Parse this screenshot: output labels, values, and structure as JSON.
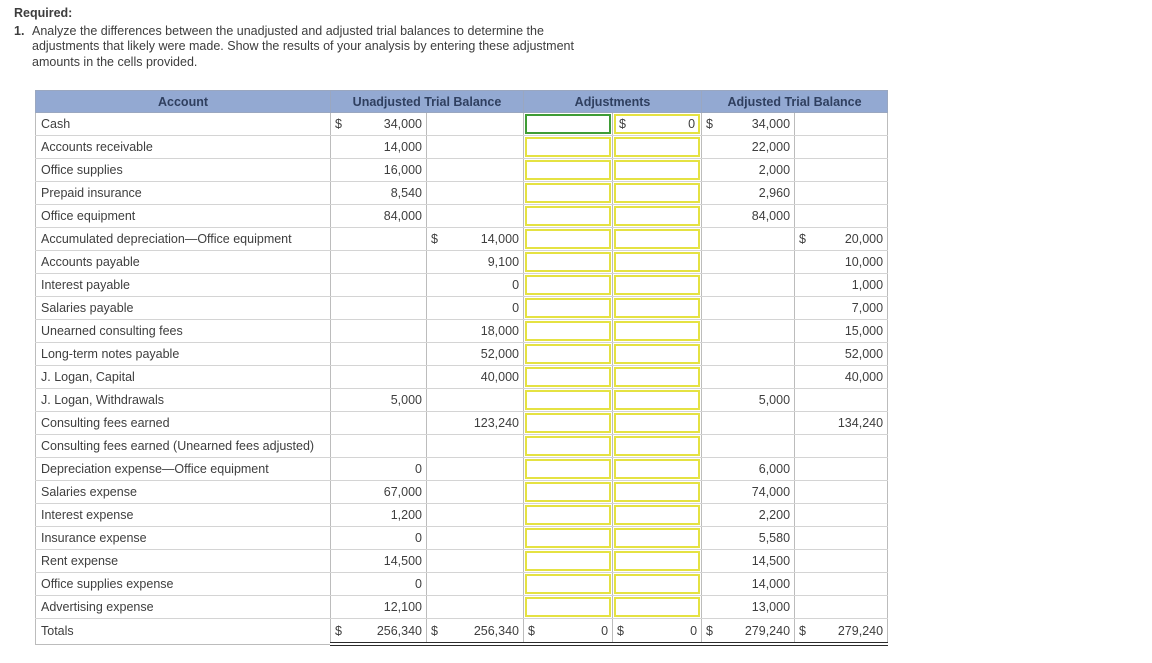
{
  "instructions": {
    "required_label": "Required:",
    "item_number": "1.",
    "item_text": "Analyze the differences between the unadjusted and adjusted trial balances to determine the adjustments that likely were made. Show the results of your analysis by entering these adjustment amounts in the cells provided."
  },
  "colors": {
    "header_bg": "#93a9d2",
    "header_text": "#2f3f5f",
    "input_cell_border": "#e5e242",
    "active_cell_border": "#3f9c35"
  },
  "table": {
    "headers": {
      "account": "Account",
      "unadjusted": "Unadjusted Trial Balance",
      "adjustments": "Adjustments",
      "adjusted": "Adjusted Trial Balance"
    },
    "rows": [
      {
        "account": "Cash",
        "ud_sign": "$",
        "ud": "34,000",
        "adj_debit": {
          "state": "active"
        },
        "adj_credit": {
          "state": "input",
          "sign": "$",
          "value": "0"
        },
        "ad_sign": "$",
        "ad": "34,000"
      },
      {
        "account": "Accounts receivable",
        "ud": "14,000",
        "ad": "22,000"
      },
      {
        "account": "Office supplies",
        "ud": "16,000",
        "ad": "2,000"
      },
      {
        "account": "Prepaid insurance",
        "ud": "8,540",
        "ad": "2,960"
      },
      {
        "account": "Office equipment",
        "ud": "84,000",
        "ad": "84,000"
      },
      {
        "account": "Accumulated depreciation—Office equipment",
        "uc_sign": "$",
        "uc": "14,000",
        "ac_sign": "$",
        "ac": "20,000"
      },
      {
        "account": "Accounts payable",
        "uc": "9,100",
        "ac": "10,000"
      },
      {
        "account": "Interest payable",
        "uc": "0",
        "ac": "1,000"
      },
      {
        "account": "Salaries payable",
        "uc": "0",
        "ac": "7,000"
      },
      {
        "account": "Unearned consulting fees",
        "uc": "18,000",
        "ac": "15,000"
      },
      {
        "account": "Long-term notes payable",
        "uc": "52,000",
        "ac": "52,000"
      },
      {
        "account": "J. Logan, Capital",
        "uc": "40,000",
        "ac": "40,000"
      },
      {
        "account": "J. Logan, Withdrawals",
        "ud": "5,000",
        "ad": "5,000"
      },
      {
        "account": "Consulting fees earned",
        "uc": "123,240",
        "ac": "134,240"
      },
      {
        "account": "Consulting fees earned (Unearned fees adjusted)"
      },
      {
        "account": "Depreciation expense—Office equipment",
        "ud": "0",
        "ad": "6,000"
      },
      {
        "account": "Salaries expense",
        "ud": "67,000",
        "ad": "74,000"
      },
      {
        "account": "Interest expense",
        "ud": "1,200",
        "ad": "2,200"
      },
      {
        "account": "Insurance expense",
        "ud": "0",
        "ad": "5,580"
      },
      {
        "account": "Rent expense",
        "ud": "14,500",
        "ad": "14,500"
      },
      {
        "account": "Office supplies expense",
        "ud": "0",
        "ad": "14,000"
      },
      {
        "account": "Advertising expense",
        "ud": "12,100",
        "ad": "13,000"
      }
    ],
    "totals": {
      "label": "Totals",
      "ud_sign": "$",
      "ud": "256,340",
      "uc_sign": "$",
      "uc": "256,340",
      "adj_d_sign": "$",
      "adj_d": "0",
      "adj_c_sign": "$",
      "adj_c": "0",
      "ad_sign": "$",
      "ad": "279,240",
      "ac_sign": "$",
      "ac": "279,240"
    }
  }
}
